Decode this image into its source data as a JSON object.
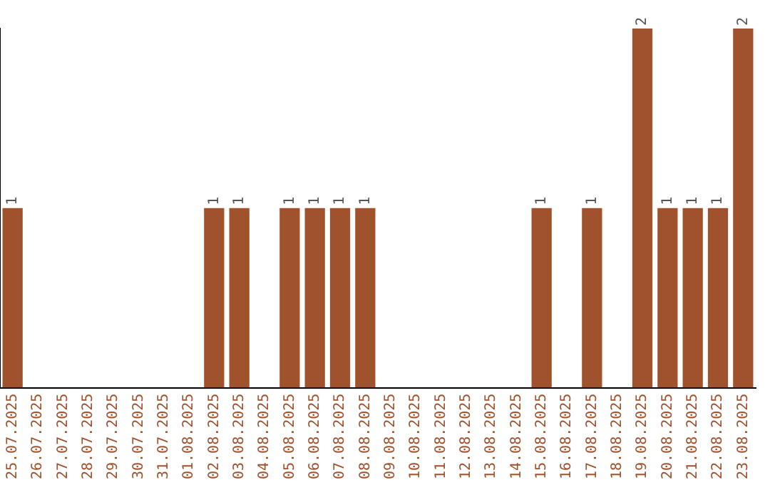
{
  "chart_data": {
    "type": "bar",
    "categories": [
      "25.07.2025",
      "26.07.2025",
      "27.07.2025",
      "28.07.2025",
      "29.07.2025",
      "30.07.2025",
      "31.07.2025",
      "01.08.2025",
      "02.08.2025",
      "03.08.2025",
      "04.08.2025",
      "05.08.2025",
      "06.08.2025",
      "07.08.2025",
      "08.08.2025",
      "09.08.2025",
      "10.08.2025",
      "11.08.2025",
      "12.08.2025",
      "13.08.2025",
      "14.08.2025",
      "15.08.2025",
      "16.08.2025",
      "17.08.2025",
      "18.08.2025",
      "19.08.2025",
      "20.08.2025",
      "21.08.2025",
      "22.08.2025",
      "23.08.2025"
    ],
    "values": [
      1,
      0,
      0,
      0,
      0,
      0,
      0,
      0,
      1,
      1,
      0,
      1,
      1,
      1,
      1,
      0,
      0,
      0,
      0,
      0,
      0,
      1,
      0,
      1,
      0,
      2,
      1,
      1,
      1,
      2
    ],
    "value_labels": [
      "1",
      null,
      null,
      null,
      null,
      null,
      null,
      null,
      "1",
      "1",
      null,
      "1",
      "1",
      "1",
      "1",
      null,
      null,
      null,
      null,
      null,
      null,
      "1",
      null,
      "1",
      null,
      "2",
      "1",
      "1",
      "1",
      "2"
    ],
    "color": "#a0522d",
    "grid": false,
    "legend": false
  }
}
